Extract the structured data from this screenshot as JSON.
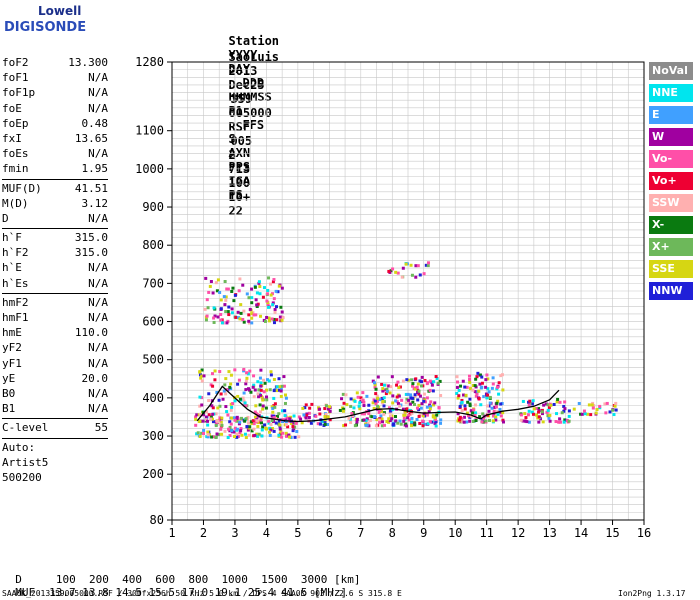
{
  "logo": {
    "top": "Lowell",
    "bottom": "DIGISONDE"
  },
  "header": {
    "labels": [
      "Station",
      "YYYY",
      "DAY",
      "DDD",
      "HHMMSS",
      "P1",
      "FFS",
      "S",
      "AXN",
      "PPS",
      "IGA",
      "PS"
    ],
    "values": [
      "SaoLuis",
      "2013",
      "Dec25",
      "359",
      "005000",
      "RSF",
      "005",
      "2",
      "713",
      "100",
      "10+",
      "22"
    ]
  },
  "params": {
    "groups": [
      [
        {
          "k": "foF2",
          "v": "13.300"
        },
        {
          "k": "foF1",
          "v": "N/A"
        },
        {
          "k": "foF1p",
          "v": "N/A"
        },
        {
          "k": "foE",
          "v": "N/A"
        },
        {
          "k": "foEp",
          "v": "0.48"
        },
        {
          "k": "fxI",
          "v": "13.65"
        },
        {
          "k": "foEs",
          "v": "N/A"
        },
        {
          "k": "fmin",
          "v": "1.95"
        }
      ],
      [
        {
          "k": "MUF(D)",
          "v": "41.51"
        },
        {
          "k": "M(D)",
          "v": "3.12"
        },
        {
          "k": "D",
          "v": "N/A"
        }
      ],
      [
        {
          "k": "h`F",
          "v": "315.0"
        },
        {
          "k": "h`F2",
          "v": "315.0"
        },
        {
          "k": "h`E",
          "v": "N/A"
        },
        {
          "k": "h`Es",
          "v": "N/A"
        }
      ],
      [
        {
          "k": "hmF2",
          "v": "N/A"
        },
        {
          "k": "hmF1",
          "v": "N/A"
        },
        {
          "k": "hmE",
          "v": "110.0"
        },
        {
          "k": "yF2",
          "v": "N/A"
        },
        {
          "k": "yF1",
          "v": "N/A"
        },
        {
          "k": "yE",
          "v": "20.0"
        },
        {
          "k": "B0",
          "v": "N/A"
        },
        {
          "k": "B1",
          "v": "N/A"
        }
      ],
      [
        {
          "k": "C-level",
          "v": "55"
        }
      ]
    ],
    "auto_lines": [
      "Auto:",
      "Artist5",
      "500200"
    ]
  },
  "legend": [
    {
      "label": "NoVal",
      "color": "#8c8c8c"
    },
    {
      "label": "NNE",
      "color": "#00e5ee"
    },
    {
      "label": "E",
      "color": "#40a0ff"
    },
    {
      "label": "W",
      "color": "#a000a0"
    },
    {
      "label": "Vo-",
      "color": "#ff4fa8"
    },
    {
      "label": "Vo+",
      "color": "#ee0033"
    },
    {
      "label": "SSW",
      "color": "#ffb0b0"
    },
    {
      "label": "X-",
      "color": "#0a7a10"
    },
    {
      "label": "X+",
      "color": "#6db85a"
    },
    {
      "label": "SSE",
      "color": "#d6d613"
    },
    {
      "label": "NNW",
      "color": "#2020d8"
    }
  ],
  "footer": {
    "d_label": "D",
    "d_values": [
      "100",
      "200",
      "400",
      "600",
      "800",
      "1000",
      "1500",
      "3000",
      "[km]"
    ],
    "muf_label": "MUF",
    "muf_values": [
      "13.7",
      "13.8",
      "14.5",
      "15.5",
      "17.0",
      "19.1",
      "25.4",
      "41.5",
      "[MHz]"
    ],
    "info_line": "SAA0K_2013359005000.RSF / 300fx256h 50 kHz 5.0 km / DPS-4 SAA0K 903 / 2.6 S 315.8 E",
    "version": "Ion2Png 1.3.17"
  },
  "chart_data": {
    "type": "scatter",
    "title": "",
    "xlabel": "",
    "ylabel": "",
    "xlim": [
      1,
      16
    ],
    "ylim": [
      80,
      1280
    ],
    "x_ticks": [
      1,
      2,
      3,
      4,
      5,
      6,
      7,
      8,
      9,
      10,
      11,
      12,
      13,
      14,
      15,
      16
    ],
    "y_ticks": [
      80,
      200,
      300,
      400,
      500,
      600,
      700,
      800,
      900,
      1000,
      1100,
      1280
    ],
    "grid": true,
    "clusters": [
      {
        "x": [
          1.7,
          5.0
        ],
        "y": [
          300,
          360
        ],
        "density": 0.9
      },
      {
        "x": [
          1.8,
          4.6
        ],
        "y": [
          340,
          480
        ],
        "density": 0.5
      },
      {
        "x": [
          2.0,
          4.5
        ],
        "y": [
          600,
          720
        ],
        "density": 0.45
      },
      {
        "x": [
          5.0,
          6.0
        ],
        "y": [
          330,
          390
        ],
        "density": 0.8
      },
      {
        "x": [
          6.3,
          7.3
        ],
        "y": [
          330,
          420
        ],
        "density": 0.7
      },
      {
        "x": [
          7.3,
          9.5
        ],
        "y": [
          330,
          460
        ],
        "density": 0.85
      },
      {
        "x": [
          7.6,
          9.2
        ],
        "y": [
          720,
          760
        ],
        "density": 0.35
      },
      {
        "x": [
          10.0,
          11.5
        ],
        "y": [
          340,
          470
        ],
        "density": 0.8
      },
      {
        "x": [
          12.0,
          13.6
        ],
        "y": [
          340,
          400
        ],
        "density": 0.75
      },
      {
        "x": [
          13.6,
          15.2
        ],
        "y": [
          360,
          390
        ],
        "density": 0.6
      }
    ],
    "trace": [
      {
        "x": 1.8,
        "y": 340
      },
      {
        "x": 2.2,
        "y": 380
      },
      {
        "x": 2.6,
        "y": 430
      },
      {
        "x": 3.0,
        "y": 400
      },
      {
        "x": 3.4,
        "y": 370
      },
      {
        "x": 3.8,
        "y": 350
      },
      {
        "x": 4.2,
        "y": 345
      },
      {
        "x": 4.6,
        "y": 340
      },
      {
        "x": 5.0,
        "y": 338
      },
      {
        "x": 5.5,
        "y": 340
      },
      {
        "x": 6.0,
        "y": 345
      },
      {
        "x": 6.5,
        "y": 350
      },
      {
        "x": 7.0,
        "y": 360
      },
      {
        "x": 7.5,
        "y": 370
      },
      {
        "x": 8.0,
        "y": 372
      },
      {
        "x": 8.5,
        "y": 365
      },
      {
        "x": 9.0,
        "y": 360
      },
      {
        "x": 9.5,
        "y": 362
      },
      {
        "x": 10.0,
        "y": 363
      },
      {
        "x": 10.5,
        "y": 355
      },
      {
        "x": 10.8,
        "y": 345
      },
      {
        "x": 11.0,
        "y": 355
      },
      {
        "x": 11.5,
        "y": 365
      },
      {
        "x": 12.0,
        "y": 370
      },
      {
        "x": 12.5,
        "y": 378
      },
      {
        "x": 13.0,
        "y": 395
      },
      {
        "x": 13.3,
        "y": 420
      }
    ]
  }
}
